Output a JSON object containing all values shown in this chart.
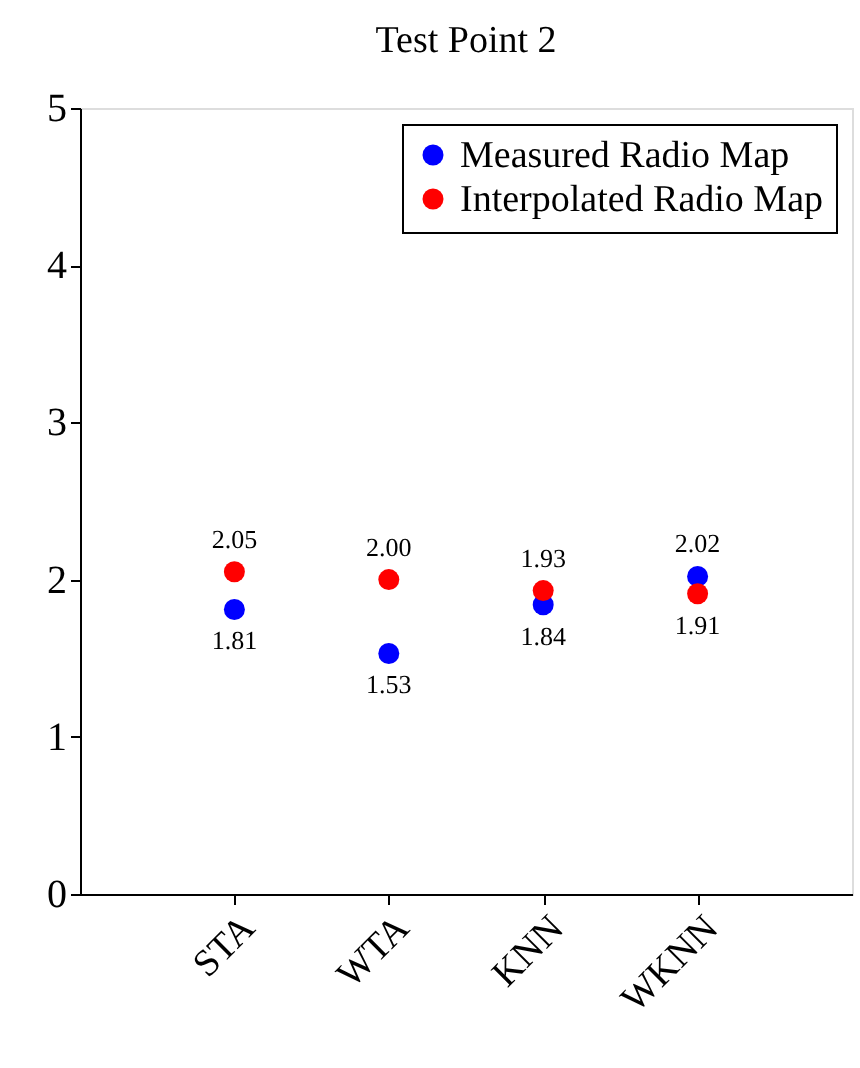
{
  "chart_data": {
    "type": "scatter",
    "title": "Test Point 2",
    "categories": [
      "STA",
      "WTA",
      "KNN",
      "WKNN"
    ],
    "series": [
      {
        "name": "Measured Radio Map",
        "color": "#0000ff",
        "values": [
          1.81,
          1.53,
          1.84,
          2.02
        ],
        "value_labels": [
          "1.81",
          "1.53",
          "1.84",
          "2.02"
        ]
      },
      {
        "name": "Interpolated Radio Map",
        "color": "#ff0000",
        "values": [
          2.05,
          2.0,
          1.93,
          1.91
        ],
        "value_labels": [
          "2.05",
          "2.00",
          "1.93",
          "1.91"
        ]
      }
    ],
    "ylim": [
      0,
      5
    ],
    "yticks": [
      0,
      1,
      2,
      3,
      4,
      5
    ],
    "legend": "top right",
    "marker": "circle"
  }
}
